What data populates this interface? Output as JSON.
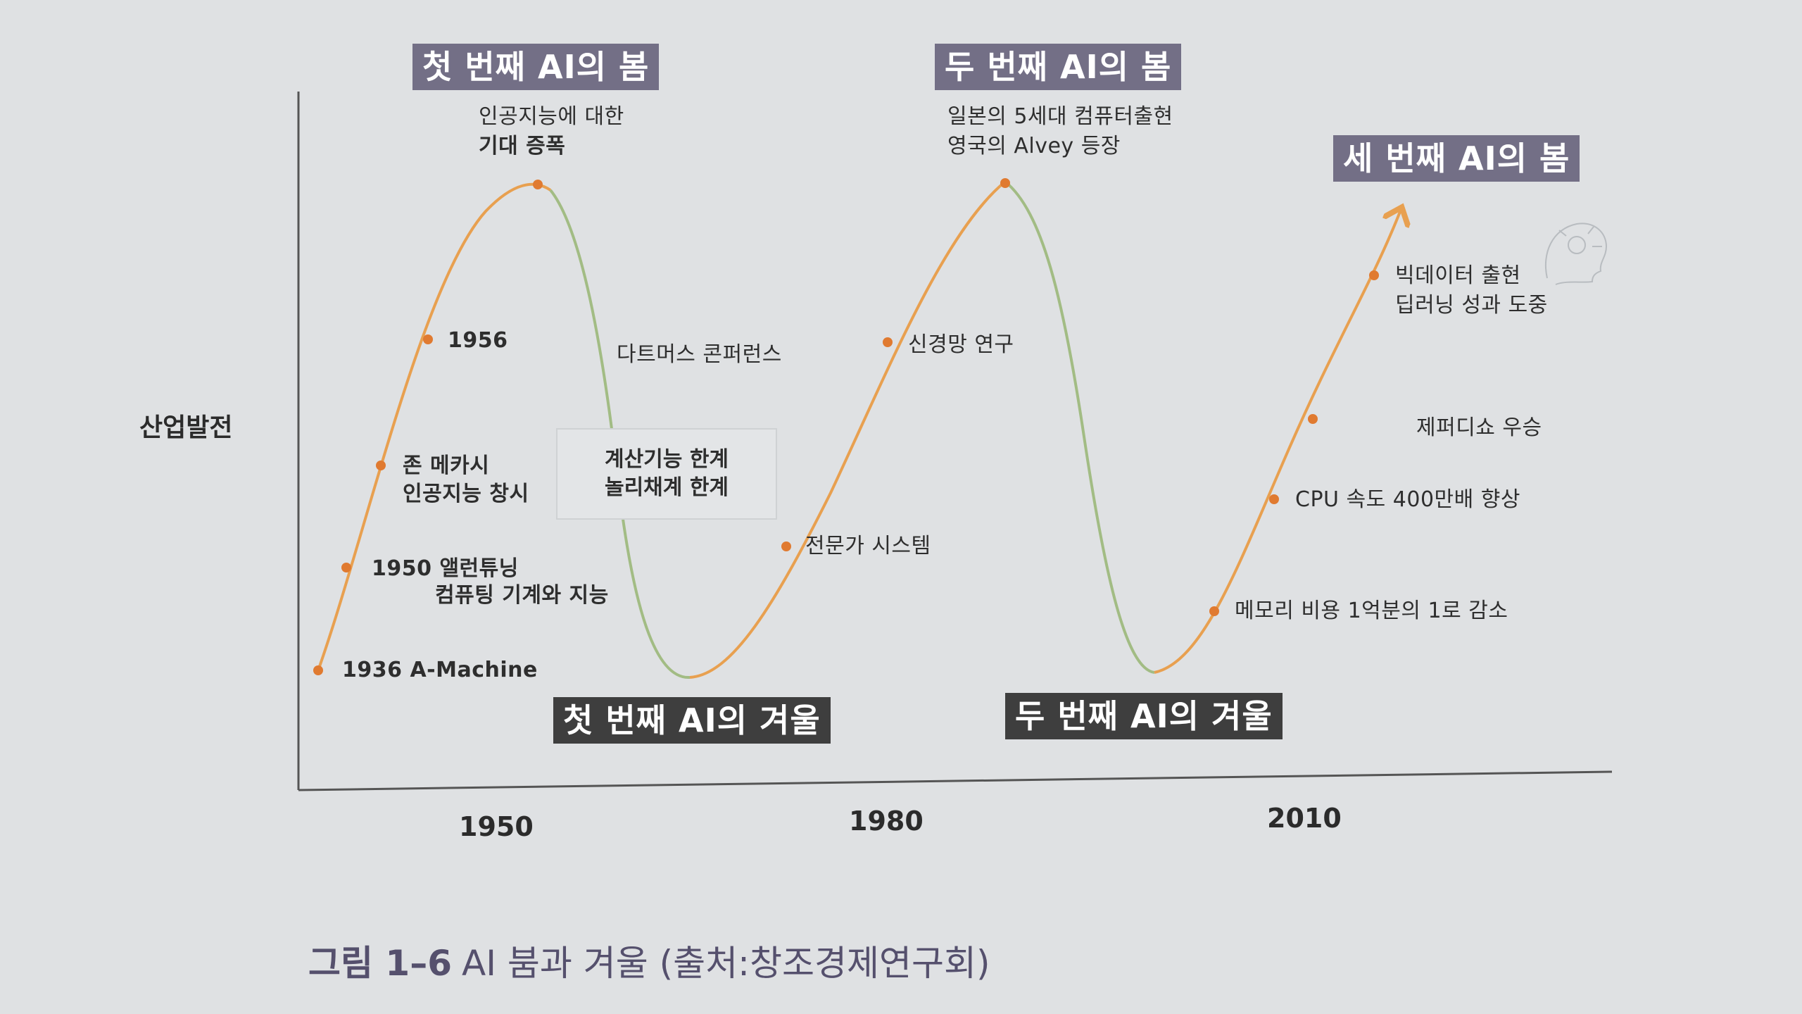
{
  "y_axis_label": "산업발전",
  "x_ticks": [
    "1950",
    "1980",
    "2010"
  ],
  "springs": [
    "첫 번째 AI의 봄",
    "두 번째 AI의 봄",
    "세 번째 AI의 봄"
  ],
  "winters": [
    "첫 번째 AI의 겨울",
    "두 번째 AI의 겨울"
  ],
  "peak1_text": {
    "line1": "인공지능에 대한",
    "line2": "기대 증폭"
  },
  "peak2_text": {
    "line1": "일본의 5세대 컴퓨터출현",
    "line2": "영국의 Alvey 등장"
  },
  "limits_box": {
    "line1": "계산기능 한계",
    "line2": "놀리채계 한계"
  },
  "events": {
    "a_machine": "1936 A-Machine",
    "turing_1": "1950 앨런튜닝",
    "turing_2": "컴퓨팅 기계와 지능",
    "mccarthy_1": "존 메카시",
    "mccarthy_2": "인공지능 창시",
    "y1956": "1956",
    "dartmouth": "다트머스 콘퍼런스",
    "expert": "전문가 시스템",
    "neural": "신경망 연구",
    "memory": "메모리 비용 1억분의 1로 감소",
    "cpu": "CPU 속도 400만배 향상",
    "jeopardy": "제퍼디쇼 우승",
    "bigdata_1": "빅데이터 출현",
    "bigdata_2": "딥러닝 성과 도중"
  },
  "caption": {
    "figure": "그림 1–6",
    "text": "AI 붐과 겨울 (출처:창조경제연구회)"
  },
  "colors": {
    "rise": "#e8a050",
    "fall": "#a2bc84",
    "dot": "#e07a30",
    "axis": "#555555"
  }
}
